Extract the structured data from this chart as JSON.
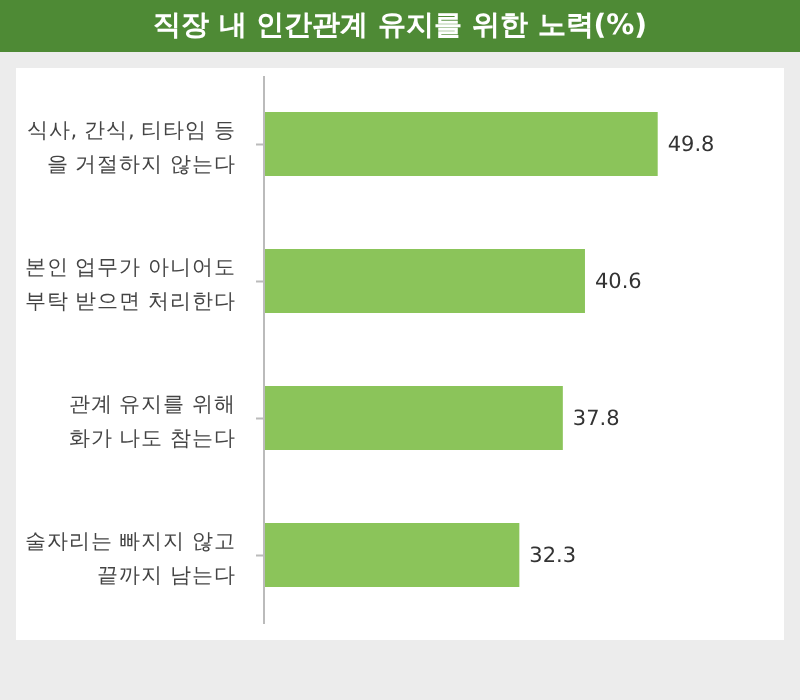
{
  "chart_data": {
    "type": "bar",
    "orientation": "horizontal",
    "title": "직장 내 인간관계 유지를 위한 노력(%)",
    "categories": [
      "식사, 간식, 티타임 등\n을 거절하지 않는다",
      "본인 업무가 아니어도\n부탁 받으면 처리한다",
      "관계 유지를 위해\n화가 나도 참는다",
      "술자리는 빠지지 않고\n끝까지 남는다"
    ],
    "values": [
      49.8,
      40.6,
      37.8,
      32.3
    ],
    "color": "#8bc45a",
    "data_labels": true
  }
}
